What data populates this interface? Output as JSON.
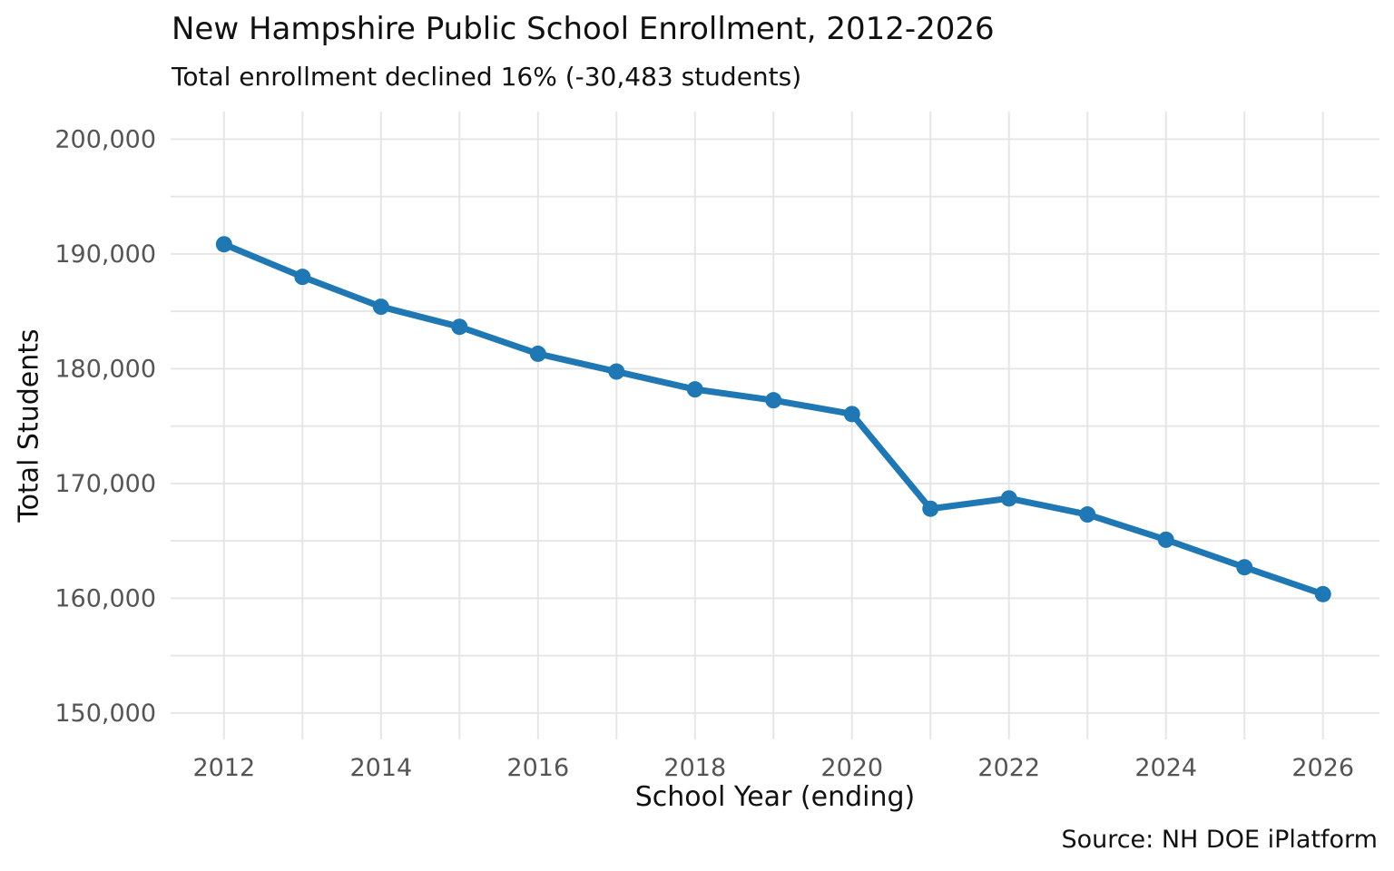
{
  "chart_data": {
    "type": "line",
    "title": "New Hampshire Public School Enrollment, 2012-2026",
    "subtitle": "Total enrollment declined 16% (-30,483 students)",
    "xlabel": "School Year (ending)",
    "ylabel": "Total Students",
    "source": "Source: NH DOE iPlatform",
    "series": [
      {
        "name": "Total enrollment",
        "x": [
          2012,
          2013,
          2014,
          2015,
          2016,
          2017,
          2018,
          2019,
          2020,
          2021,
          2022,
          2023,
          2024,
          2025,
          2026
        ],
        "y": [
          190843,
          188000,
          185400,
          183650,
          181300,
          179750,
          178200,
          177250,
          176050,
          167800,
          168700,
          167300,
          165100,
          162700,
          160360
        ],
        "color": "#1f77b4",
        "line_width": 7,
        "marker": "circle",
        "marker_radius": 9
      }
    ],
    "xlim": [
      2011.32,
      2026.72
    ],
    "ylim": [
      147700,
      202400
    ],
    "xticks": {
      "values": [
        2012,
        2014,
        2016,
        2018,
        2020,
        2022,
        2024,
        2026
      ],
      "labels": [
        "2012",
        "2014",
        "2016",
        "2018",
        "2020",
        "2022",
        "2024",
        "2026"
      ]
    },
    "yticks": {
      "values": [
        150000,
        160000,
        170000,
        180000,
        190000,
        200000
      ],
      "labels": [
        "150,000",
        "160,000",
        "170,000",
        "180,000",
        "190,000",
        "200,000"
      ]
    },
    "x_gridlines": [
      2012,
      2013,
      2014,
      2015,
      2016,
      2017,
      2018,
      2019,
      2020,
      2021,
      2022,
      2023,
      2024,
      2025,
      2026
    ],
    "y_gridlines": [
      150000,
      155000,
      160000,
      165000,
      170000,
      175000,
      180000,
      185000,
      190000,
      195000,
      200000
    ],
    "grid": true,
    "legend": "none",
    "colors": {
      "background": "#ffffff",
      "grid": "#e6e6e6",
      "tick_label": "#555555",
      "text": "#111111"
    }
  }
}
